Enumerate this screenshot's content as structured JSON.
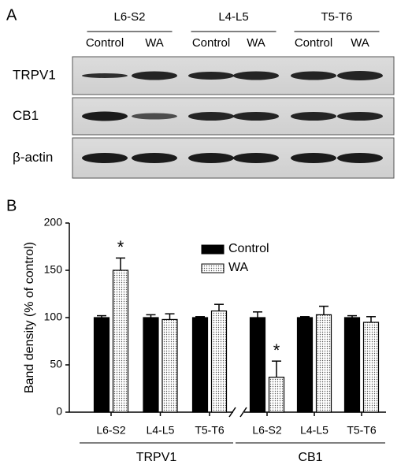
{
  "panel_a": {
    "label": "A",
    "groups": [
      "L6-S2",
      "L4-L5",
      "T5-T6"
    ],
    "columns": [
      "Control",
      "WA",
      "Control",
      "WA",
      "Control",
      "WA"
    ],
    "rows": [
      "TRPV1",
      "CB1",
      "β-actin"
    ]
  },
  "chart_data": {
    "type": "bar",
    "panel_label": "B",
    "ylabel": "Band density (% of control)",
    "categories": [
      "L6-S2",
      "L4-L5",
      "T5-T6",
      "L6-S2",
      "L4-L5",
      "T5-T6"
    ],
    "groups": [
      "TRPV1",
      "CB1"
    ],
    "series": [
      {
        "name": "Control",
        "color": "#000000",
        "values": [
          100,
          100,
          100,
          100,
          100,
          100
        ],
        "errors": [
          2,
          3,
          1,
          6,
          1,
          2
        ]
      },
      {
        "name": "WA",
        "color": "#ffffff",
        "pattern": "dotted",
        "values": [
          150,
          98,
          107,
          37,
          103,
          95
        ],
        "errors": [
          13,
          6,
          7,
          17,
          9,
          6
        ],
        "markers": [
          "*",
          null,
          null,
          "*",
          null,
          null
        ]
      }
    ],
    "ylim": [
      0,
      200
    ],
    "yticks": [
      0,
      50,
      100,
      150,
      200
    ],
    "grid": false
  }
}
